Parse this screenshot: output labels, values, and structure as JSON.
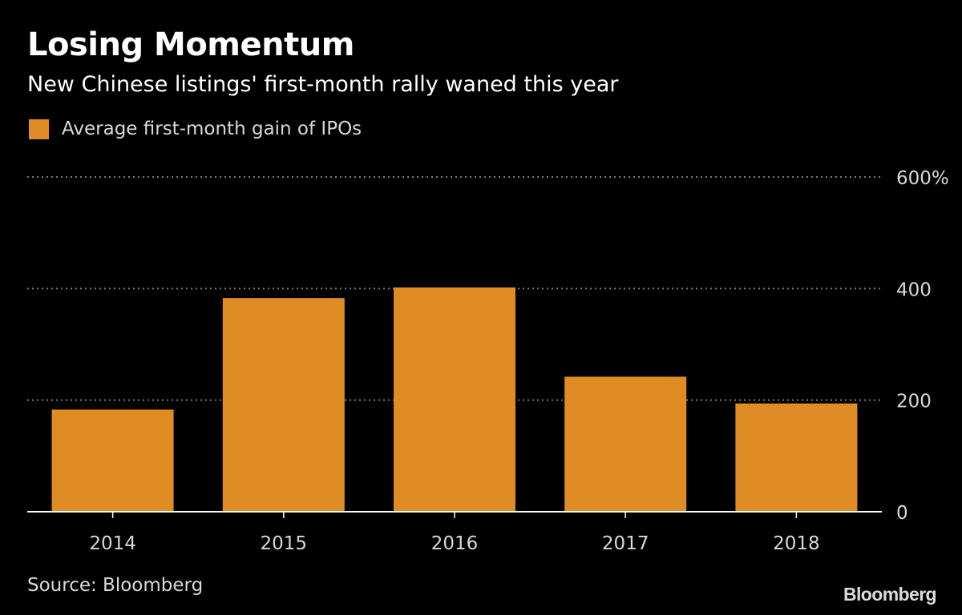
{
  "header": {
    "title": "Losing Momentum",
    "subtitle": "New Chinese listings' first-month rally waned this year"
  },
  "footer": {
    "source": "Source: Bloomberg",
    "brand": "Bloomberg"
  },
  "colors": {
    "background": "#000000",
    "bar": "#E08C24",
    "grid": "#7a7a7a",
    "axis": "#ffffff",
    "tick_text": "#d8d8d8"
  },
  "chart_data": {
    "type": "bar",
    "title": "Losing Momentum",
    "subtitle": "New Chinese listings' first-month rally waned this year",
    "categories": [
      "2014",
      "2015",
      "2016",
      "2017",
      "2018"
    ],
    "series": [
      {
        "name": "Average first-month gain of IPOs",
        "values": [
          183,
          383,
          402,
          242,
          194
        ]
      }
    ],
    "xlabel": "",
    "ylabel": "",
    "ylim": [
      0,
      600
    ],
    "yticks": [
      0,
      200,
      400,
      600
    ],
    "ytick_labels": [
      "0",
      "200",
      "400",
      "600%"
    ],
    "y_axis_position": "right",
    "grid": true,
    "legend_position": "top-left"
  }
}
